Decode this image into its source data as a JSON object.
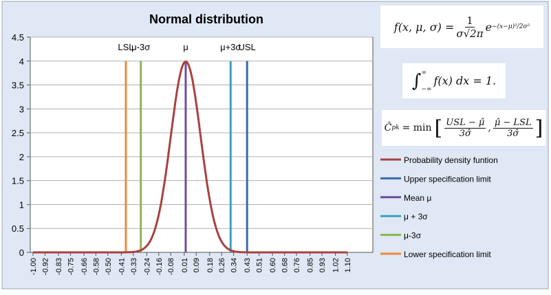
{
  "chart_data": {
    "type": "line",
    "title": "Normal distribution",
    "xlabel": "",
    "ylabel": "",
    "ylim": [
      0,
      4.5
    ],
    "xlim": [
      -1.0,
      1.1
    ],
    "y_ticks": [
      "0",
      "0.5",
      "1",
      "1.5",
      "2",
      "2.5",
      "3",
      "3.5",
      "4",
      "4.5"
    ],
    "x_ticks": [
      "-1.00",
      "-0.92",
      "-0.83",
      "-0.75",
      "-0.66",
      "-0.58",
      "-0.50",
      "-0.41",
      "-0.33",
      "-0.24",
      "-0.16",
      "-0.08",
      "0.01",
      "0.09",
      "0.18",
      "0.26",
      "0.34",
      "0.43",
      "0.51",
      "0.60",
      "0.68",
      "0.76",
      "0.85",
      "0.93",
      "1.02",
      "1.10"
    ],
    "grid": "horizontal",
    "legend_position": "right",
    "pdf": {
      "mean": 0.02,
      "sigma": 0.1
    },
    "series": [
      {
        "name": "Probability density funtion",
        "kind": "curve",
        "color": "#a9403f"
      },
      {
        "name": "Upper specification limit",
        "kind": "vline",
        "x": 0.43,
        "height": 4,
        "label": "USL",
        "color": "#3c6aa3"
      },
      {
        "name": "Mean μ",
        "kind": "vline",
        "x": 0.02,
        "height": 4,
        "label": "μ",
        "color": "#6e4d9a"
      },
      {
        "name": "μ + 3σ",
        "kind": "vline",
        "x": 0.32,
        "height": 4,
        "label": "μ+3σ",
        "color": "#3aa0bd"
      },
      {
        "name": "μ-3σ",
        "kind": "vline",
        "x": -0.28,
        "height": 4,
        "label": "μ-3σ",
        "color": "#8cb550"
      },
      {
        "name": "Lower specification limit",
        "kind": "vline",
        "x": -0.38,
        "height": 4,
        "label": "LSL",
        "color": "#ee8a3a"
      }
    ]
  },
  "equations": {
    "pdf_lhs": "f(x, μ, σ) =",
    "pdf_num": "1",
    "pdf_den": "σ√2π",
    "pdf_exp": "e",
    "pdf_exp_sup": "−(x−μ)²/2σ²",
    "integral": "∫",
    "integral_upper": "∞",
    "integral_lower": "−∞",
    "integral_body": "f(x) dx = 1.",
    "cpk_lhs": "Ĉ",
    "cpk_sub": "pk",
    "cpk_eq": "= min",
    "cpk_num1": "USL − μ̂",
    "cpk_den1": "3σ̂",
    "cpk_num2": "μ̂ − LSL",
    "cpk_den2": "3σ̂"
  },
  "colors": {
    "background": "#dfe8f4",
    "plot": "#ffffff",
    "grid": "#b0b0b0"
  }
}
